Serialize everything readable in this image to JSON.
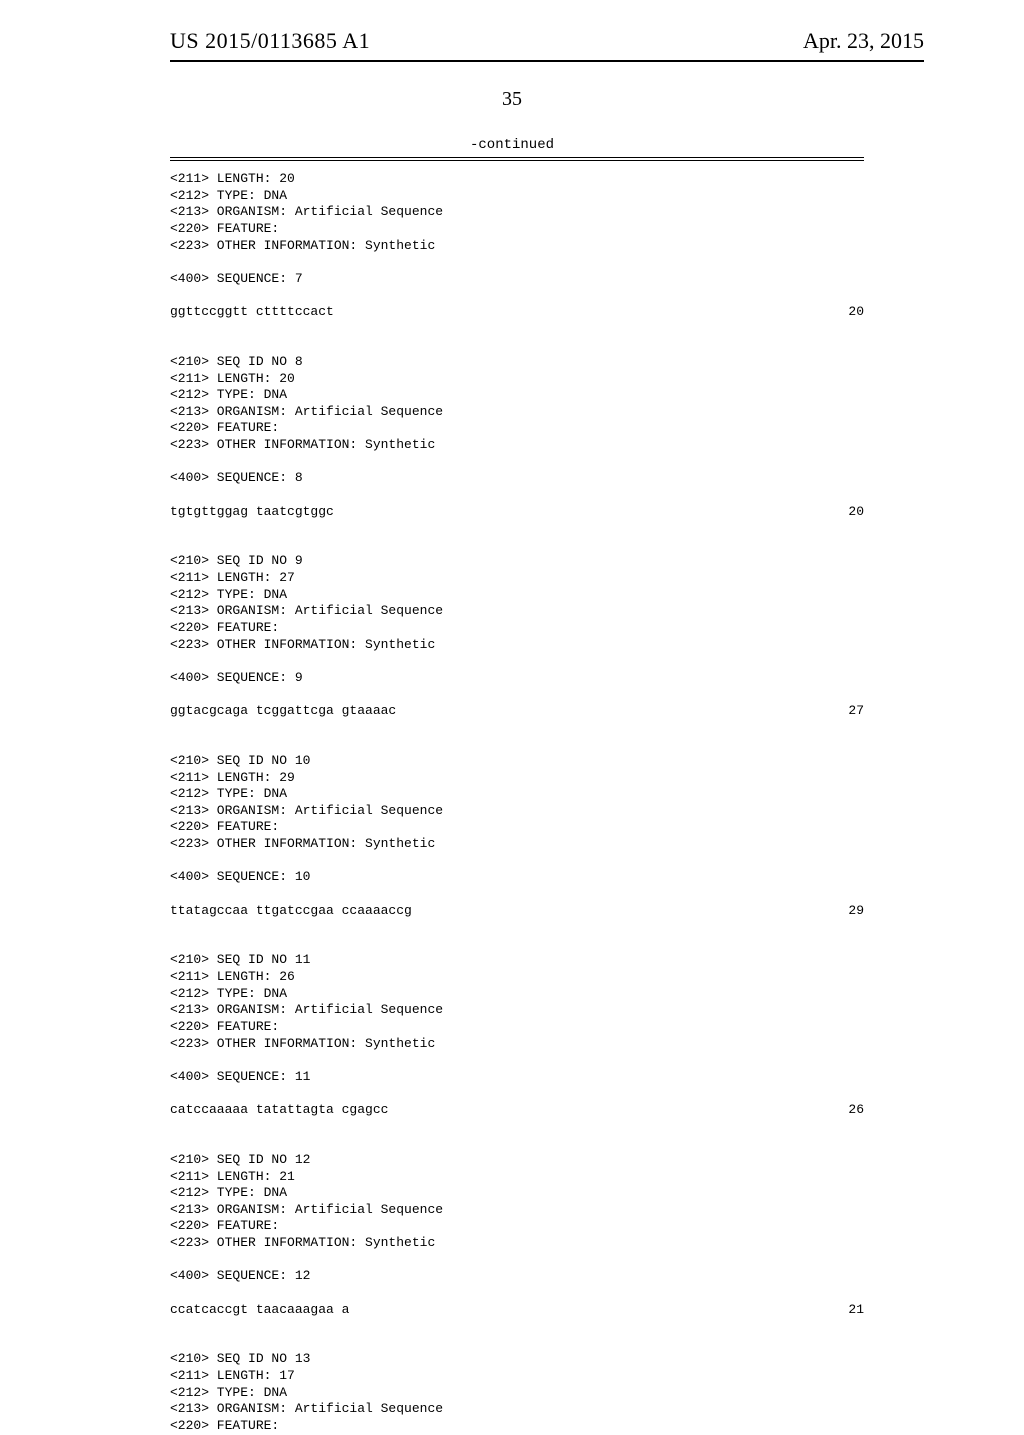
{
  "header": {
    "pub_number": "US 2015/0113685 A1",
    "pub_date": "Apr. 23, 2015"
  },
  "page_number": "35",
  "continued_label": "-continued",
  "entries": [
    {
      "pre_lines": [
        "<211> LENGTH: 20",
        "<212> TYPE: DNA",
        "<213> ORGANISM: Artificial Sequence",
        "<220> FEATURE:",
        "<223> OTHER INFORMATION: Synthetic",
        "",
        "<400> SEQUENCE: 7",
        ""
      ],
      "sequence": "ggttccggtt cttttccact",
      "length": "20"
    },
    {
      "pre_lines": [
        "",
        "",
        "<210> SEQ ID NO 8",
        "<211> LENGTH: 20",
        "<212> TYPE: DNA",
        "<213> ORGANISM: Artificial Sequence",
        "<220> FEATURE:",
        "<223> OTHER INFORMATION: Synthetic",
        "",
        "<400> SEQUENCE: 8",
        ""
      ],
      "sequence": "tgtgttggag taatcgtggc",
      "length": "20"
    },
    {
      "pre_lines": [
        "",
        "",
        "<210> SEQ ID NO 9",
        "<211> LENGTH: 27",
        "<212> TYPE: DNA",
        "<213> ORGANISM: Artificial Sequence",
        "<220> FEATURE:",
        "<223> OTHER INFORMATION: Synthetic",
        "",
        "<400> SEQUENCE: 9",
        ""
      ],
      "sequence": "ggtacgcaga tcggattcga gtaaaac",
      "length": "27"
    },
    {
      "pre_lines": [
        "",
        "",
        "<210> SEQ ID NO 10",
        "<211> LENGTH: 29",
        "<212> TYPE: DNA",
        "<213> ORGANISM: Artificial Sequence",
        "<220> FEATURE:",
        "<223> OTHER INFORMATION: Synthetic",
        "",
        "<400> SEQUENCE: 10",
        ""
      ],
      "sequence": "ttatagccaa ttgatccgaa ccaaaaccg",
      "length": "29"
    },
    {
      "pre_lines": [
        "",
        "",
        "<210> SEQ ID NO 11",
        "<211> LENGTH: 26",
        "<212> TYPE: DNA",
        "<213> ORGANISM: Artificial Sequence",
        "<220> FEATURE:",
        "<223> OTHER INFORMATION: Synthetic",
        "",
        "<400> SEQUENCE: 11",
        ""
      ],
      "sequence": "catccaaaaa tatattagta cgagcc",
      "length": "26"
    },
    {
      "pre_lines": [
        "",
        "",
        "<210> SEQ ID NO 12",
        "<211> LENGTH: 21",
        "<212> TYPE: DNA",
        "<213> ORGANISM: Artificial Sequence",
        "<220> FEATURE:",
        "<223> OTHER INFORMATION: Synthetic",
        "",
        "<400> SEQUENCE: 12",
        ""
      ],
      "sequence": "ccatcaccgt taacaaagaa a",
      "length": "21"
    },
    {
      "pre_lines": [
        "",
        "",
        "<210> SEQ ID NO 13",
        "<211> LENGTH: 17",
        "<212> TYPE: DNA",
        "<213> ORGANISM: Artificial Sequence",
        "<220> FEATURE:"
      ],
      "sequence": "",
      "length": ""
    }
  ]
}
